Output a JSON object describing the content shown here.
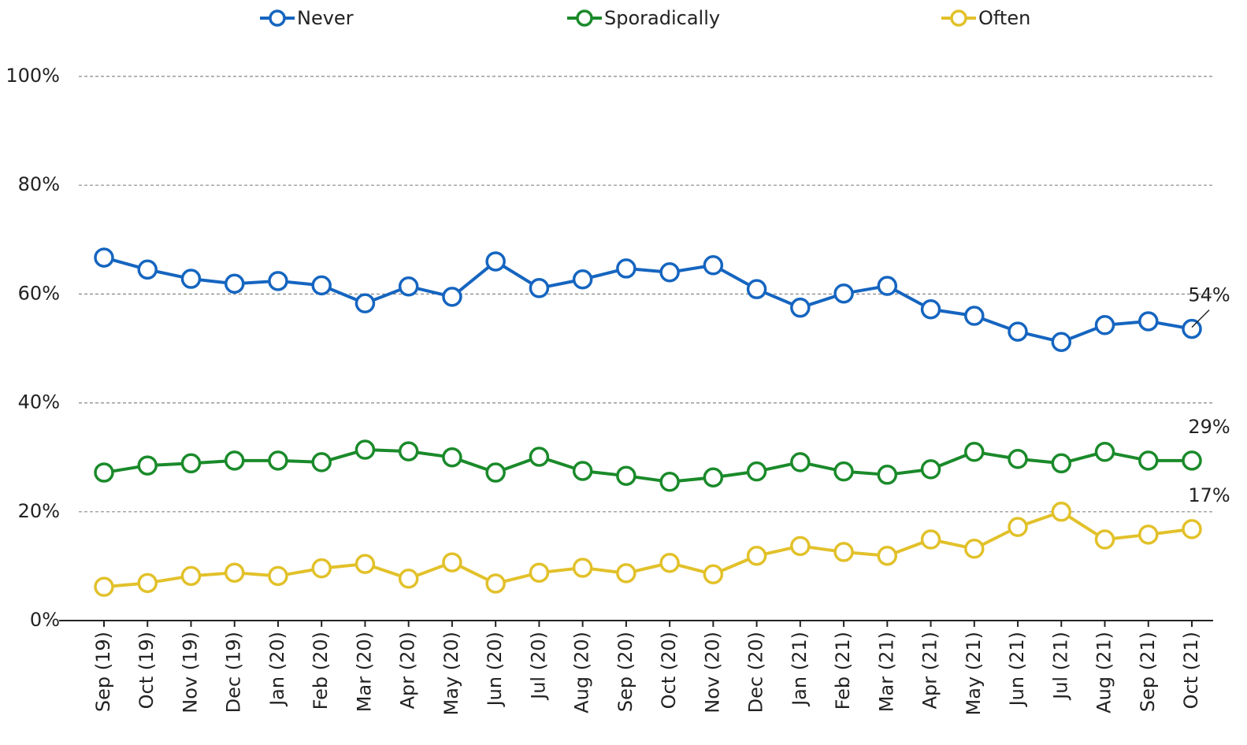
{
  "chart_data": {
    "type": "line",
    "categories": [
      "Sep (19)",
      "Oct (19)",
      "Nov (19)",
      "Dec (19)",
      "Jan (20)",
      "Feb (20)",
      "Mar (20)",
      "Apr (20)",
      "May (20)",
      "Jun (20)",
      "Jul (20)",
      "Aug (20)",
      "Sep (20)",
      "Oct (20)",
      "Nov (20)",
      "Dec (20)",
      "Jan (21)",
      "Feb (21)",
      "Mar (21)",
      "Apr (21)",
      "May (21)",
      "Jun (21)",
      "Jul (21)",
      "Aug (21)",
      "Sep (21)",
      "Oct (21)"
    ],
    "series": [
      {
        "name": "Never",
        "color": "#1565c0",
        "values": [
          66.7,
          64.5,
          62.8,
          61.9,
          62.4,
          61.6,
          58.3,
          61.4,
          59.5,
          66.0,
          61.1,
          62.7,
          64.7,
          64.0,
          65.3,
          60.9,
          57.5,
          60.1,
          61.5,
          57.2,
          56.0,
          53.1,
          51.2,
          54.3,
          55.0,
          53.6
        ],
        "value_labels": [
          null,
          null,
          null,
          null,
          null,
          null,
          null,
          null,
          null,
          null,
          null,
          null,
          null,
          null,
          null,
          null,
          null,
          null,
          null,
          null,
          null,
          null,
          null,
          null,
          null,
          "54%"
        ]
      },
      {
        "name": "Sporadically",
        "color": "#1a8a2a",
        "values": [
          27.2,
          28.5,
          28.9,
          29.4,
          29.4,
          29.1,
          31.4,
          31.1,
          30.0,
          27.2,
          30.1,
          27.5,
          26.6,
          25.5,
          26.3,
          27.4,
          29.1,
          27.4,
          26.8,
          27.8,
          31.0,
          29.7,
          28.9,
          31.0,
          29.4,
          29.4
        ],
        "value_labels": [
          null,
          null,
          null,
          null,
          null,
          null,
          null,
          null,
          null,
          null,
          null,
          null,
          null,
          null,
          null,
          null,
          null,
          null,
          null,
          null,
          null,
          null,
          null,
          null,
          null,
          "29%"
        ]
      },
      {
        "name": "Often",
        "color": "#e2c12a",
        "values": [
          6.2,
          6.9,
          8.2,
          8.8,
          8.2,
          9.6,
          10.4,
          7.7,
          10.7,
          6.8,
          8.8,
          9.7,
          8.7,
          10.6,
          8.5,
          11.9,
          13.7,
          12.6,
          11.9,
          14.9,
          13.2,
          17.2,
          20.0,
          14.9,
          15.8,
          16.8
        ],
        "value_labels": [
          null,
          null,
          null,
          null,
          null,
          null,
          null,
          null,
          null,
          null,
          null,
          null,
          null,
          null,
          null,
          null,
          null,
          null,
          null,
          null,
          null,
          null,
          null,
          null,
          null,
          "17%"
        ]
      }
    ],
    "ylim": [
      0,
      100
    ],
    "yticks": [
      {
        "value": 0,
        "label": "0%"
      },
      {
        "value": 20,
        "label": "20%"
      },
      {
        "value": 40,
        "label": "40%"
      },
      {
        "value": 60,
        "label": "60%"
      },
      {
        "value": 80,
        "label": "80%"
      },
      {
        "value": 100,
        "label": "100%"
      }
    ],
    "grid": true,
    "legend": "top"
  }
}
